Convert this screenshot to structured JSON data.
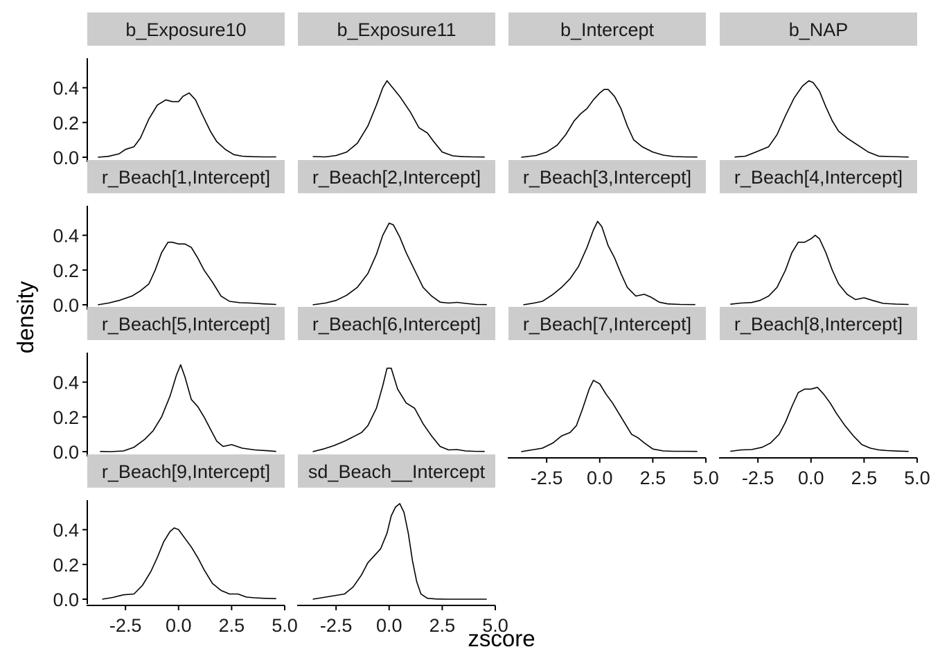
{
  "chart_data": {
    "type": "line",
    "xlabel": "zscore",
    "ylabel": "density",
    "xlim": [
      -4.3,
      5.0
    ],
    "ylim": [
      -0.02,
      0.57
    ],
    "x_ticks": [
      -2.5,
      0.0,
      2.5,
      5.0
    ],
    "x_tick_labels": [
      "-2.5",
      "0.0",
      "2.5",
      "5.0"
    ],
    "y_ticks": [
      0.0,
      0.2,
      0.4
    ],
    "y_tick_labels": [
      "0.0",
      "0.2",
      "0.4"
    ],
    "grid": false,
    "legend": "none",
    "panels": [
      {
        "label": "b_Exposure10",
        "x": [
          -3.8,
          -3.3,
          -2.8,
          -2.5,
          -2.1,
          -1.8,
          -1.4,
          -1.0,
          -0.6,
          -0.3,
          0.0,
          0.2,
          0.5,
          0.8,
          1.1,
          1.5,
          1.8,
          2.2,
          2.6,
          3.0,
          3.5,
          4.0,
          4.6
        ],
        "values": [
          0.0,
          0.005,
          0.02,
          0.045,
          0.06,
          0.11,
          0.22,
          0.3,
          0.33,
          0.32,
          0.32,
          0.35,
          0.37,
          0.33,
          0.25,
          0.15,
          0.09,
          0.045,
          0.015,
          0.006,
          0.003,
          0.002,
          0.002
        ]
      },
      {
        "label": "b_Exposure11",
        "x": [
          -3.6,
          -3.0,
          -2.5,
          -2.0,
          -1.5,
          -1.0,
          -0.6,
          -0.3,
          -0.1,
          0.1,
          0.5,
          1.0,
          1.4,
          1.8,
          2.1,
          2.5,
          3.0,
          3.5,
          4.0,
          4.5
        ],
        "values": [
          0.004,
          0.002,
          0.01,
          0.03,
          0.08,
          0.18,
          0.3,
          0.4,
          0.44,
          0.41,
          0.35,
          0.26,
          0.17,
          0.14,
          0.09,
          0.03,
          0.008,
          0.003,
          0.002,
          0.001
        ]
      },
      {
        "label": "b_Intercept",
        "x": [
          -3.7,
          -3.0,
          -2.5,
          -2.0,
          -1.6,
          -1.2,
          -0.9,
          -0.6,
          -0.3,
          0.0,
          0.2,
          0.4,
          0.7,
          1.0,
          1.3,
          1.6,
          2.0,
          2.5,
          3.0,
          3.5,
          4.0,
          4.6
        ],
        "values": [
          0.0,
          0.01,
          0.03,
          0.07,
          0.13,
          0.21,
          0.25,
          0.28,
          0.33,
          0.37,
          0.39,
          0.39,
          0.35,
          0.28,
          0.18,
          0.1,
          0.06,
          0.03,
          0.012,
          0.004,
          0.002,
          0.001
        ]
      },
      {
        "label": "b_NAP",
        "x": [
          -3.6,
          -3.1,
          -2.7,
          -2.3,
          -2.0,
          -1.6,
          -1.2,
          -0.8,
          -0.4,
          -0.1,
          0.1,
          0.4,
          0.7,
          1.0,
          1.3,
          1.7,
          2.2,
          2.7,
          3.2,
          3.8,
          4.3,
          4.6
        ],
        "values": [
          0.001,
          0.006,
          0.025,
          0.045,
          0.06,
          0.13,
          0.24,
          0.34,
          0.41,
          0.44,
          0.43,
          0.38,
          0.29,
          0.21,
          0.15,
          0.11,
          0.07,
          0.03,
          0.006,
          0.004,
          0.002,
          0.001
        ]
      },
      {
        "label": "r_Beach[1,Intercept]",
        "x": [
          -3.8,
          -3.3,
          -2.8,
          -2.2,
          -1.8,
          -1.4,
          -1.1,
          -0.8,
          -0.5,
          -0.3,
          0.0,
          0.3,
          0.6,
          0.9,
          1.2,
          1.6,
          2.0,
          2.4,
          2.9,
          3.4,
          4.0,
          4.6
        ],
        "values": [
          0.0,
          0.01,
          0.025,
          0.05,
          0.08,
          0.12,
          0.2,
          0.3,
          0.36,
          0.36,
          0.35,
          0.35,
          0.33,
          0.27,
          0.2,
          0.13,
          0.05,
          0.02,
          0.012,
          0.01,
          0.005,
          0.002
        ]
      },
      {
        "label": "r_Beach[2,Intercept]",
        "x": [
          -3.6,
          -3.0,
          -2.5,
          -2.0,
          -1.5,
          -1.0,
          -0.6,
          -0.3,
          0.0,
          0.2,
          0.5,
          0.8,
          1.2,
          1.6,
          2.0,
          2.4,
          2.8,
          3.2,
          3.6,
          4.1,
          4.6
        ],
        "values": [
          0.0,
          0.01,
          0.025,
          0.055,
          0.1,
          0.18,
          0.29,
          0.4,
          0.47,
          0.46,
          0.39,
          0.3,
          0.2,
          0.1,
          0.05,
          0.015,
          0.01,
          0.014,
          0.008,
          0.002,
          0.001
        ]
      },
      {
        "label": "r_Beach[3,Intercept]",
        "x": [
          -3.6,
          -3.1,
          -2.7,
          -2.2,
          -1.8,
          -1.4,
          -1.0,
          -0.6,
          -0.3,
          -0.1,
          0.1,
          0.4,
          0.7,
          1.0,
          1.3,
          1.7,
          2.1,
          2.4,
          2.8,
          3.2,
          3.8,
          4.5
        ],
        "values": [
          0.0,
          0.01,
          0.02,
          0.06,
          0.1,
          0.15,
          0.22,
          0.33,
          0.43,
          0.48,
          0.45,
          0.34,
          0.27,
          0.18,
          0.1,
          0.05,
          0.06,
          0.045,
          0.015,
          0.005,
          0.002,
          0.001
        ]
      },
      {
        "label": "r_Beach[4,Intercept]",
        "x": [
          -3.8,
          -3.3,
          -2.8,
          -2.4,
          -2.0,
          -1.6,
          -1.2,
          -0.9,
          -0.6,
          -0.3,
          0.0,
          0.2,
          0.4,
          0.7,
          1.0,
          1.3,
          1.7,
          2.1,
          2.5,
          2.9,
          3.4,
          4.0,
          4.6
        ],
        "values": [
          0.003,
          0.01,
          0.013,
          0.025,
          0.05,
          0.1,
          0.2,
          0.3,
          0.36,
          0.36,
          0.38,
          0.4,
          0.38,
          0.3,
          0.2,
          0.12,
          0.06,
          0.03,
          0.04,
          0.025,
          0.008,
          0.004,
          0.002
        ]
      },
      {
        "label": "r_Beach[5,Intercept]",
        "x": [
          -3.7,
          -3.2,
          -2.6,
          -2.1,
          -1.6,
          -1.2,
          -0.8,
          -0.4,
          -0.1,
          0.1,
          0.3,
          0.6,
          0.9,
          1.2,
          1.5,
          1.8,
          2.1,
          2.5,
          3.0,
          3.6,
          4.2,
          4.6
        ],
        "values": [
          0.001,
          0.0,
          0.004,
          0.025,
          0.07,
          0.12,
          0.2,
          0.32,
          0.44,
          0.5,
          0.43,
          0.3,
          0.26,
          0.2,
          0.13,
          0.06,
          0.03,
          0.04,
          0.02,
          0.01,
          0.005,
          0.001
        ]
      },
      {
        "label": "r_Beach[6,Intercept]",
        "x": [
          -3.6,
          -3.1,
          -2.6,
          -2.1,
          -1.7,
          -1.3,
          -1.0,
          -0.6,
          -0.3,
          -0.1,
          0.1,
          0.4,
          0.8,
          1.2,
          1.6,
          2.0,
          2.4,
          2.8,
          3.2,
          3.6,
          4.0,
          4.5
        ],
        "values": [
          0.0,
          0.015,
          0.035,
          0.06,
          0.085,
          0.11,
          0.15,
          0.25,
          0.38,
          0.48,
          0.48,
          0.36,
          0.28,
          0.25,
          0.16,
          0.09,
          0.03,
          0.01,
          0.012,
          0.004,
          0.002,
          0.001
        ]
      },
      {
        "label": "r_Beach[7,Intercept]",
        "x": [
          -3.7,
          -3.2,
          -2.7,
          -2.2,
          -1.8,
          -1.4,
          -1.1,
          -0.8,
          -0.5,
          -0.3,
          0.0,
          0.3,
          0.6,
          0.9,
          1.2,
          1.5,
          1.8,
          2.1,
          2.5,
          3.0,
          3.5,
          4.0,
          4.6
        ],
        "values": [
          0.0,
          0.01,
          0.02,
          0.05,
          0.09,
          0.11,
          0.15,
          0.25,
          0.36,
          0.41,
          0.39,
          0.33,
          0.28,
          0.22,
          0.16,
          0.1,
          0.08,
          0.05,
          0.015,
          0.004,
          0.002,
          0.002,
          0.001
        ]
      },
      {
        "label": "r_Beach[8,Intercept]",
        "x": [
          -3.8,
          -3.3,
          -2.8,
          -2.3,
          -1.9,
          -1.5,
          -1.2,
          -0.9,
          -0.6,
          -0.3,
          0.0,
          0.3,
          0.6,
          0.9,
          1.2,
          1.6,
          2.0,
          2.4,
          2.8,
          3.2,
          3.6,
          4.1,
          4.6
        ],
        "values": [
          0.002,
          0.01,
          0.012,
          0.025,
          0.05,
          0.1,
          0.17,
          0.26,
          0.34,
          0.36,
          0.36,
          0.37,
          0.33,
          0.28,
          0.22,
          0.15,
          0.09,
          0.04,
          0.02,
          0.01,
          0.006,
          0.003,
          0.001
        ]
      },
      {
        "label": "r_Beach[9,Intercept]",
        "x": [
          -3.6,
          -3.1,
          -2.6,
          -2.1,
          -1.7,
          -1.3,
          -1.0,
          -0.7,
          -0.4,
          -0.2,
          0.0,
          0.3,
          0.6,
          0.9,
          1.2,
          1.6,
          2.0,
          2.4,
          2.8,
          3.2,
          3.6,
          4.0,
          4.6
        ],
        "values": [
          0.0,
          0.01,
          0.025,
          0.03,
          0.08,
          0.16,
          0.24,
          0.33,
          0.39,
          0.41,
          0.4,
          0.35,
          0.3,
          0.24,
          0.17,
          0.09,
          0.05,
          0.03,
          0.03,
          0.012,
          0.008,
          0.005,
          0.003
        ]
      },
      {
        "label": "sd_Beach__Intercept",
        "x": [
          -3.6,
          -3.1,
          -2.6,
          -2.1,
          -1.7,
          -1.3,
          -1.0,
          -0.7,
          -0.4,
          -0.1,
          0.1,
          0.3,
          0.5,
          0.7,
          0.9,
          1.1,
          1.3,
          1.5,
          1.8,
          2.2,
          2.7,
          3.2,
          3.8,
          4.6
        ],
        "values": [
          0.0,
          0.01,
          0.02,
          0.03,
          0.07,
          0.14,
          0.21,
          0.25,
          0.29,
          0.38,
          0.48,
          0.53,
          0.55,
          0.5,
          0.38,
          0.22,
          0.1,
          0.03,
          0.005,
          0.001,
          0.0,
          0.0,
          0.0,
          0.0
        ]
      }
    ]
  }
}
